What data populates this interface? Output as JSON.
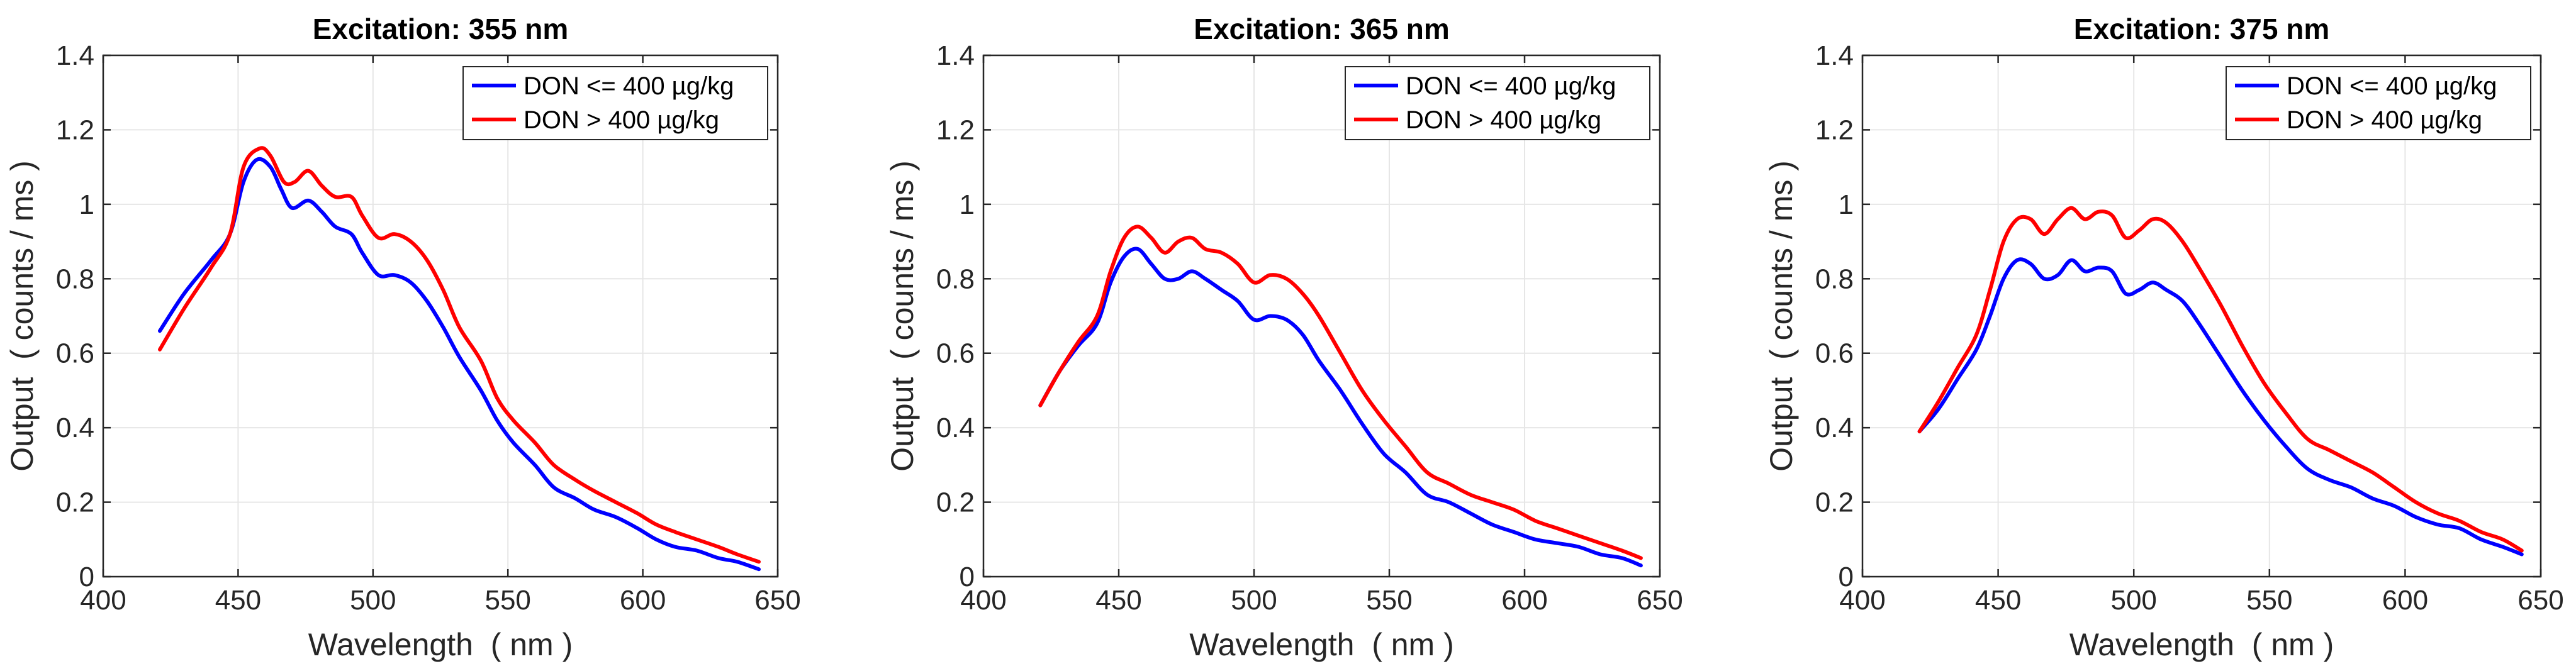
{
  "chart_data": [
    {
      "type": "line",
      "title": "Excitation: 355 nm",
      "xlabel": "Wavelength  ( nm )",
      "ylabel": "Output  ( counts / ms )",
      "xlim": [
        400,
        650
      ],
      "ylim": [
        0,
        1.4
      ],
      "xticks": [
        400,
        450,
        500,
        550,
        600,
        650
      ],
      "yticks": [
        0,
        0.2,
        0.4,
        0.6,
        0.8,
        1,
        1.2,
        1.4
      ],
      "xtick_labels": [
        "400",
        "450",
        "500",
        "550",
        "600",
        "650"
      ],
      "ytick_labels": [
        "0",
        "0.2",
        "0.4",
        "0.6",
        "0.8",
        "1",
        "1.2",
        "1.4"
      ],
      "grid": true,
      "legend_position": "top-right",
      "series": [
        {
          "name": "DON <= 400 µg/kg",
          "color": "#0000ff",
          "x": [
            421,
            430,
            440,
            447,
            452,
            457,
            462,
            466,
            470,
            476,
            481,
            486,
            492,
            496,
            502,
            508,
            514,
            520,
            526,
            532,
            540,
            546,
            552,
            560,
            567,
            575,
            582,
            590,
            598,
            605,
            612,
            620,
            628,
            635,
            643
          ],
          "y": [
            0.66,
            0.76,
            0.85,
            0.92,
            1.06,
            1.12,
            1.1,
            1.04,
            0.99,
            1.01,
            0.98,
            0.94,
            0.92,
            0.87,
            0.81,
            0.81,
            0.79,
            0.74,
            0.67,
            0.59,
            0.5,
            0.42,
            0.36,
            0.3,
            0.24,
            0.21,
            0.18,
            0.16,
            0.13,
            0.1,
            0.08,
            0.07,
            0.05,
            0.04,
            0.02
          ]
        },
        {
          "name": "DON > 400 µg/kg",
          "color": "#ff0000",
          "x": [
            421,
            430,
            440,
            447,
            452,
            458,
            462,
            467,
            471,
            476,
            481,
            486,
            492,
            496,
            502,
            508,
            514,
            520,
            526,
            532,
            540,
            546,
            552,
            560,
            567,
            575,
            582,
            590,
            598,
            605,
            612,
            620,
            628,
            635,
            643
          ],
          "y": [
            0.61,
            0.72,
            0.83,
            0.92,
            1.1,
            1.15,
            1.13,
            1.06,
            1.06,
            1.09,
            1.05,
            1.02,
            1.02,
            0.97,
            0.91,
            0.92,
            0.9,
            0.85,
            0.77,
            0.67,
            0.58,
            0.48,
            0.42,
            0.36,
            0.3,
            0.26,
            0.23,
            0.2,
            0.17,
            0.14,
            0.12,
            0.1,
            0.08,
            0.06,
            0.04
          ]
        }
      ]
    },
    {
      "type": "line",
      "title": "Excitation: 365 nm",
      "xlabel": "Wavelength  ( nm )",
      "ylabel": "Output  ( counts / ms )",
      "xlim": [
        400,
        650
      ],
      "ylim": [
        0,
        1.4
      ],
      "xticks": [
        400,
        450,
        500,
        550,
        600,
        650
      ],
      "yticks": [
        0,
        0.2,
        0.4,
        0.6,
        0.8,
        1,
        1.2,
        1.4
      ],
      "xtick_labels": [
        "400",
        "450",
        "500",
        "550",
        "600",
        "650"
      ],
      "ytick_labels": [
        "0",
        "0.2",
        "0.4",
        "0.6",
        "0.8",
        "1",
        "1.2",
        "1.4"
      ],
      "grid": true,
      "legend_position": "top-right",
      "series": [
        {
          "name": "DON <= 400 µg/kg",
          "color": "#0000ff",
          "x": [
            421,
            428,
            435,
            442,
            447,
            452,
            457,
            462,
            467,
            472,
            477,
            482,
            488,
            494,
            500,
            506,
            512,
            518,
            524,
            532,
            540,
            548,
            556,
            564,
            572,
            580,
            588,
            596,
            604,
            612,
            620,
            628,
            636,
            643
          ],
          "y": [
            0.46,
            0.55,
            0.62,
            0.68,
            0.79,
            0.86,
            0.88,
            0.84,
            0.8,
            0.8,
            0.82,
            0.8,
            0.77,
            0.74,
            0.69,
            0.7,
            0.69,
            0.65,
            0.58,
            0.5,
            0.41,
            0.33,
            0.28,
            0.22,
            0.2,
            0.17,
            0.14,
            0.12,
            0.1,
            0.09,
            0.08,
            0.06,
            0.05,
            0.03
          ]
        },
        {
          "name": "DON > 400 µg/kg",
          "color": "#ff0000",
          "x": [
            421,
            428,
            435,
            442,
            447,
            452,
            457,
            462,
            467,
            472,
            477,
            482,
            488,
            494,
            500,
            506,
            512,
            518,
            524,
            532,
            540,
            548,
            556,
            564,
            572,
            580,
            588,
            596,
            604,
            612,
            620,
            628,
            636,
            643
          ],
          "y": [
            0.46,
            0.55,
            0.63,
            0.7,
            0.82,
            0.91,
            0.94,
            0.91,
            0.87,
            0.9,
            0.91,
            0.88,
            0.87,
            0.84,
            0.79,
            0.81,
            0.8,
            0.76,
            0.7,
            0.6,
            0.5,
            0.42,
            0.35,
            0.28,
            0.25,
            0.22,
            0.2,
            0.18,
            0.15,
            0.13,
            0.11,
            0.09,
            0.07,
            0.05
          ]
        }
      ]
    },
    {
      "type": "line",
      "title": "Excitation: 375 nm",
      "xlabel": "Wavelength  ( nm )",
      "ylabel": "Output  ( counts / ms )",
      "xlim": [
        400,
        650
      ],
      "ylim": [
        0,
        1.4
      ],
      "xticks": [
        400,
        450,
        500,
        550,
        600,
        650
      ],
      "yticks": [
        0,
        0.2,
        0.4,
        0.6,
        0.8,
        1,
        1.2,
        1.4
      ],
      "xtick_labels": [
        "400",
        "450",
        "500",
        "550",
        "600",
        "650"
      ],
      "ytick_labels": [
        "0",
        "0.2",
        "0.4",
        "0.6",
        "0.8",
        "1",
        "1.2",
        "1.4"
      ],
      "grid": true,
      "legend_position": "top-right",
      "series": [
        {
          "name": "DON <= 400 µg/kg",
          "color": "#0000ff",
          "x": [
            421,
            428,
            435,
            442,
            447,
            452,
            457,
            462,
            467,
            472,
            477,
            482,
            487,
            492,
            497,
            502,
            507,
            512,
            518,
            524,
            532,
            540,
            548,
            556,
            564,
            572,
            580,
            588,
            596,
            604,
            612,
            620,
            628,
            636,
            643
          ],
          "y": [
            0.39,
            0.45,
            0.53,
            0.61,
            0.7,
            0.8,
            0.85,
            0.84,
            0.8,
            0.81,
            0.85,
            0.82,
            0.83,
            0.82,
            0.76,
            0.77,
            0.79,
            0.77,
            0.74,
            0.68,
            0.59,
            0.5,
            0.42,
            0.35,
            0.29,
            0.26,
            0.24,
            0.21,
            0.19,
            0.16,
            0.14,
            0.13,
            0.1,
            0.08,
            0.06
          ]
        },
        {
          "name": "DON > 400 µg/kg",
          "color": "#ff0000",
          "x": [
            421,
            428,
            435,
            442,
            447,
            452,
            457,
            462,
            467,
            472,
            477,
            482,
            487,
            492,
            497,
            502,
            507,
            512,
            518,
            524,
            532,
            540,
            548,
            556,
            564,
            572,
            580,
            588,
            596,
            604,
            612,
            620,
            628,
            636,
            643
          ],
          "y": [
            0.39,
            0.47,
            0.56,
            0.65,
            0.77,
            0.9,
            0.96,
            0.96,
            0.92,
            0.96,
            0.99,
            0.96,
            0.98,
            0.97,
            0.91,
            0.93,
            0.96,
            0.95,
            0.9,
            0.83,
            0.73,
            0.62,
            0.52,
            0.44,
            0.37,
            0.34,
            0.31,
            0.28,
            0.24,
            0.2,
            0.17,
            0.15,
            0.12,
            0.1,
            0.07
          ]
        }
      ]
    }
  ]
}
